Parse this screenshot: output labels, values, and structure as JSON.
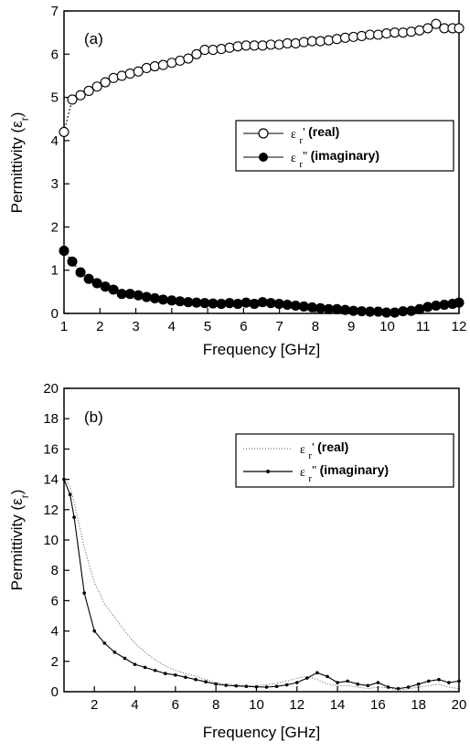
{
  "chart_data": [
    {
      "type": "scatter",
      "panel_label": "(a)",
      "xlabel": "Frequency [GHz]",
      "ylabel": "Permittivity (ε_r)",
      "xlim": [
        1,
        12
      ],
      "ylim": [
        0,
        7
      ],
      "xticks": [
        "1",
        "2",
        "3",
        "4",
        "5",
        "6",
        "7",
        "8",
        "9",
        "10",
        "11",
        "12"
      ],
      "yticks": [
        "0",
        "1",
        "2",
        "3",
        "4",
        "5",
        "6",
        "7"
      ],
      "grid": false,
      "legend_position": "middle-right",
      "series": [
        {
          "name": "ε_r' (real)",
          "color": "#000000",
          "marker": "open-circle",
          "x": [
            1.0,
            1.23,
            1.46,
            1.69,
            1.92,
            2.15,
            2.38,
            2.61,
            2.84,
            3.07,
            3.3,
            3.53,
            3.76,
            4.0,
            4.23,
            4.46,
            4.69,
            4.92,
            5.15,
            5.38,
            5.61,
            5.84,
            6.07,
            6.3,
            6.53,
            6.76,
            6.99,
            7.22,
            7.45,
            7.68,
            7.91,
            8.14,
            8.37,
            8.6,
            8.83,
            9.06,
            9.29,
            9.52,
            9.75,
            9.98,
            10.21,
            10.44,
            10.67,
            10.9,
            11.13,
            11.36,
            11.59,
            11.82,
            12.0
          ],
          "y": [
            4.2,
            4.95,
            5.05,
            5.15,
            5.25,
            5.35,
            5.45,
            5.5,
            5.55,
            5.6,
            5.68,
            5.72,
            5.75,
            5.8,
            5.85,
            5.9,
            6.0,
            6.1,
            6.1,
            6.12,
            6.15,
            6.18,
            6.2,
            6.2,
            6.2,
            6.22,
            6.22,
            6.25,
            6.25,
            6.28,
            6.3,
            6.3,
            6.32,
            6.35,
            6.38,
            6.4,
            6.42,
            6.45,
            6.45,
            6.48,
            6.5,
            6.5,
            6.52,
            6.55,
            6.6,
            6.7,
            6.6,
            6.6,
            6.6
          ]
        },
        {
          "name": "ε_r'' (imaginary)",
          "color": "#000000",
          "marker": "filled-circle",
          "x": [
            1.0,
            1.23,
            1.46,
            1.69,
            1.92,
            2.15,
            2.38,
            2.61,
            2.84,
            3.07,
            3.3,
            3.53,
            3.76,
            4.0,
            4.23,
            4.46,
            4.69,
            4.92,
            5.15,
            5.38,
            5.61,
            5.84,
            6.07,
            6.3,
            6.53,
            6.76,
            6.99,
            7.22,
            7.45,
            7.68,
            7.91,
            8.14,
            8.37,
            8.6,
            8.83,
            9.06,
            9.29,
            9.52,
            9.75,
            9.98,
            10.21,
            10.44,
            10.67,
            10.9,
            11.13,
            11.36,
            11.59,
            11.82,
            12.0
          ],
          "y": [
            1.45,
            1.2,
            0.95,
            0.8,
            0.7,
            0.62,
            0.55,
            0.45,
            0.45,
            0.42,
            0.38,
            0.35,
            0.32,
            0.3,
            0.28,
            0.26,
            0.25,
            0.24,
            0.23,
            0.22,
            0.24,
            0.22,
            0.25,
            0.22,
            0.26,
            0.24,
            0.22,
            0.2,
            0.18,
            0.16,
            0.14,
            0.12,
            0.1,
            0.1,
            0.08,
            0.06,
            0.05,
            0.04,
            0.04,
            0.02,
            0.02,
            0.05,
            0.06,
            0.1,
            0.15,
            0.18,
            0.2,
            0.22,
            0.25
          ]
        }
      ]
    },
    {
      "type": "line",
      "panel_label": "(b)",
      "xlabel": "Frequency [GHz]",
      "ylabel": "Permittivity (ε_r)",
      "xlim": [
        0.5,
        20
      ],
      "ylim": [
        0,
        20
      ],
      "xticks": [
        "2",
        "4",
        "6",
        "8",
        "10",
        "12",
        "14",
        "16",
        "18",
        "20"
      ],
      "yticks": [
        "0",
        "2",
        "4",
        "6",
        "8",
        "10",
        "12",
        "14",
        "16",
        "18",
        "20"
      ],
      "grid": false,
      "legend_position": "top-right",
      "series": [
        {
          "name": "ε_r' (real)",
          "color": "#555555",
          "style": "dotted",
          "x": [
            0.5,
            0.8,
            1.0,
            1.5,
            2.0,
            2.5,
            3.0,
            3.5,
            4.0,
            4.5,
            5.0,
            5.5,
            6.0,
            6.5,
            7.0,
            7.5,
            8.0,
            8.5,
            9.0,
            9.5,
            10.0,
            10.5,
            11.0,
            11.5,
            12.0,
            12.5,
            13.0,
            13.5,
            14.0,
            14.5,
            15.0,
            15.5,
            16.0,
            16.5,
            17.0,
            17.5,
            18.0,
            18.5,
            19.0,
            19.5,
            20.0
          ],
          "y": [
            14.2,
            13.5,
            12.5,
            9.5,
            7.2,
            5.8,
            4.9,
            4.0,
            3.2,
            2.6,
            2.1,
            1.7,
            1.4,
            1.2,
            1.0,
            0.8,
            0.6,
            0.5,
            0.45,
            0.4,
            0.4,
            0.45,
            0.55,
            0.7,
            0.9,
            1.0,
            0.8,
            0.5,
            0.4,
            0.4,
            0.3,
            0.2,
            0.3,
            0.25,
            0.1,
            0.2,
            0.3,
            0.4,
            0.5,
            0.3,
            0.2
          ]
        },
        {
          "name": "ε_r'' (imaginary)",
          "color": "#000000",
          "style": "solid-dots",
          "x": [
            0.5,
            0.8,
            1.0,
            1.5,
            2.0,
            2.5,
            3.0,
            3.5,
            4.0,
            4.5,
            5.0,
            5.5,
            6.0,
            6.5,
            7.0,
            7.5,
            8.0,
            8.5,
            9.0,
            9.5,
            10.0,
            10.5,
            11.0,
            11.5,
            12.0,
            12.5,
            13.0,
            13.5,
            14.0,
            14.5,
            15.0,
            15.5,
            16.0,
            16.5,
            17.0,
            17.5,
            18.0,
            18.5,
            19.0,
            19.5,
            20.0
          ],
          "y": [
            14.0,
            13.0,
            11.5,
            6.5,
            4.0,
            3.2,
            2.6,
            2.2,
            1.8,
            1.6,
            1.4,
            1.2,
            1.1,
            0.95,
            0.8,
            0.65,
            0.5,
            0.42,
            0.38,
            0.35,
            0.32,
            0.3,
            0.35,
            0.45,
            0.6,
            0.9,
            1.25,
            1.0,
            0.6,
            0.7,
            0.5,
            0.4,
            0.6,
            0.3,
            0.2,
            0.3,
            0.5,
            0.7,
            0.8,
            0.6,
            0.7
          ]
        }
      ]
    }
  ]
}
